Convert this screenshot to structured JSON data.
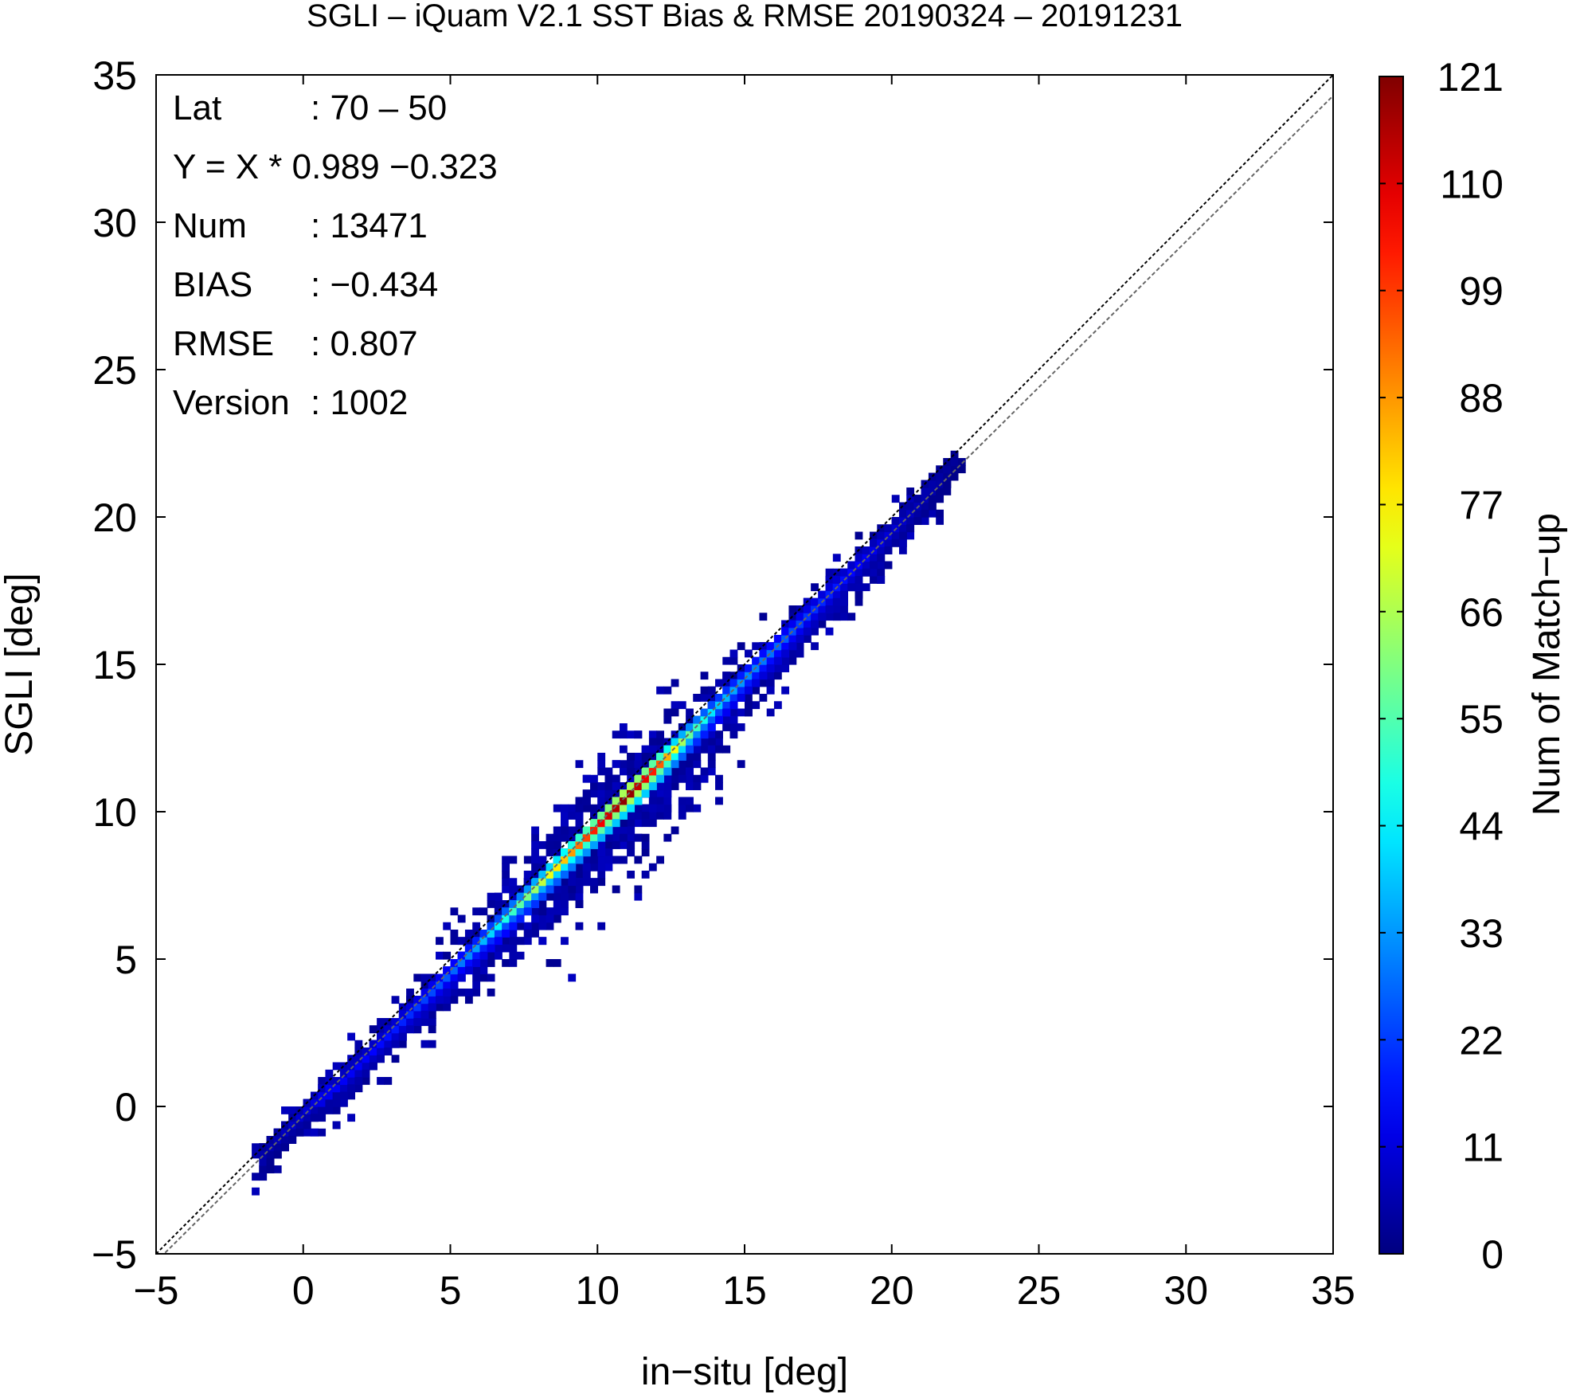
{
  "chart_data": {
    "type": "heatmap",
    "title": "SGLI – iQuam V2.1 SST Bias & RMSE 20190324 – 20191231",
    "xlabel": "in−situ [deg]",
    "ylabel": "SGLI [deg]",
    "xlim": [
      -5,
      35
    ],
    "ylim": [
      -5,
      35
    ],
    "xticks": [
      -5,
      0,
      5,
      10,
      15,
      20,
      25,
      30,
      35
    ],
    "yticks": [
      -5,
      0,
      5,
      10,
      15,
      20,
      25,
      30,
      35
    ],
    "bin_size_deg": 0.25,
    "grid": false,
    "colorbar": {
      "label": "Num of Match−up",
      "min": 0,
      "max": 121,
      "ticks": [
        0,
        11,
        22,
        33,
        44,
        55,
        66,
        77,
        88,
        99,
        110,
        121
      ],
      "colormap": "jet"
    },
    "stats": [
      {
        "key": "Lat",
        "value": ": 70 – 50"
      },
      {
        "key": "Y = X * 0.989 −0.323",
        "value": ""
      },
      {
        "key": "Num",
        "value": ": 13471"
      },
      {
        "key": "BIAS",
        "value": ": −0.434"
      },
      {
        "key": "RMSE",
        "value": ": 0.807"
      },
      {
        "key": "Version",
        "value": ": 1002"
      }
    ],
    "regression": {
      "slope": 0.989,
      "intercept": -0.323
    },
    "reference_lines": [
      "one-to-one",
      "regression"
    ],
    "density_core": [
      {
        "x": -1.5,
        "y": -1.8,
        "count": 5
      },
      {
        "x": -1.0,
        "y": -1.2,
        "count": 6
      },
      {
        "x": 0.0,
        "y": -0.2,
        "count": 10
      },
      {
        "x": 1.0,
        "y": 0.6,
        "count": 14
      },
      {
        "x": 2.0,
        "y": 1.6,
        "count": 14
      },
      {
        "x": 3.0,
        "y": 2.6,
        "count": 17
      },
      {
        "x": 4.0,
        "y": 3.6,
        "count": 22
      },
      {
        "x": 5.0,
        "y": 4.5,
        "count": 26
      },
      {
        "x": 6.0,
        "y": 5.6,
        "count": 35
      },
      {
        "x": 7.0,
        "y": 6.6,
        "count": 50
      },
      {
        "x": 8.0,
        "y": 7.5,
        "count": 66
      },
      {
        "x": 9.0,
        "y": 8.5,
        "count": 85
      },
      {
        "x": 10.0,
        "y": 9.5,
        "count": 105
      },
      {
        "x": 11.0,
        "y": 10.5,
        "count": 121
      },
      {
        "x": 12.0,
        "y": 11.5,
        "count": 100
      },
      {
        "x": 13.0,
        "y": 12.5,
        "count": 60
      },
      {
        "x": 14.0,
        "y": 13.6,
        "count": 40
      },
      {
        "x": 15.0,
        "y": 14.5,
        "count": 32
      },
      {
        "x": 16.0,
        "y": 15.5,
        "count": 28
      },
      {
        "x": 17.0,
        "y": 16.6,
        "count": 22
      },
      {
        "x": 18.0,
        "y": 17.6,
        "count": 18
      },
      {
        "x": 19.0,
        "y": 18.6,
        "count": 14
      },
      {
        "x": 20.0,
        "y": 19.6,
        "count": 10
      },
      {
        "x": 21.0,
        "y": 20.6,
        "count": 6
      },
      {
        "x": 22.0,
        "y": 21.8,
        "count": 3
      }
    ]
  }
}
